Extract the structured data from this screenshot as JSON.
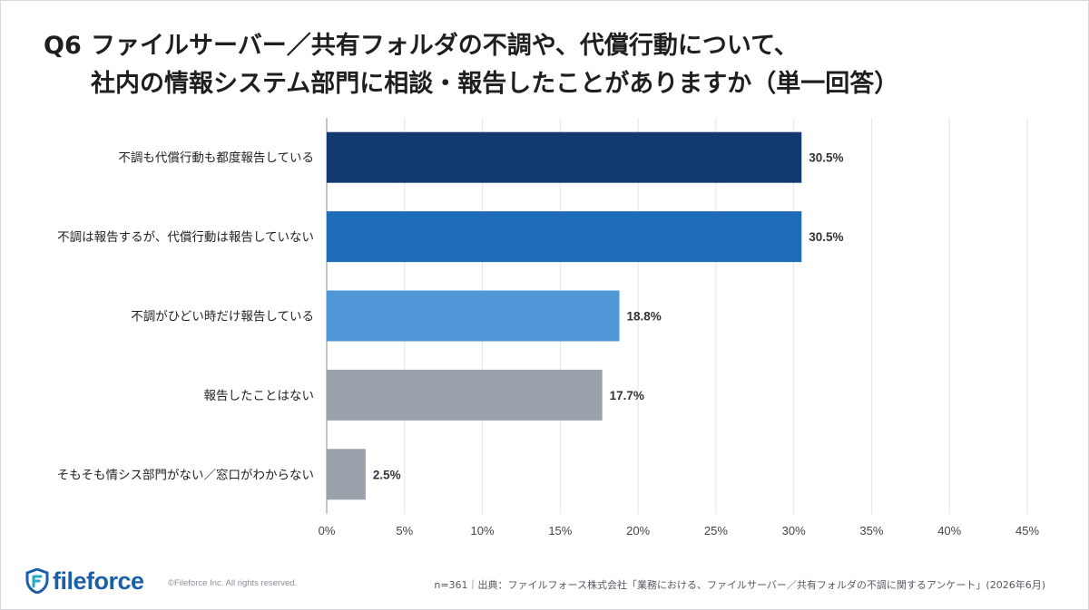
{
  "title": {
    "qnum": "Q6",
    "line1": "ファイルサーバー／共有フォルダの不調や、代償行動について、",
    "line2": "社内の情報システム部門に相談・報告したことがありますか（単一回答）"
  },
  "chart_data": {
    "type": "bar",
    "orientation": "horizontal",
    "categories": [
      "不調も代償行動も都度報告している",
      "不調は報告するが、代償行動は報告していない",
      "不調がひどい時だけ報告している",
      "報告したことはない",
      "そもそも情シス部門がない／窓口がわからない"
    ],
    "values": [
      30.5,
      30.5,
      18.8,
      17.7,
      2.5
    ],
    "value_labels": [
      "30.5%",
      "30.5%",
      "18.8%",
      "17.7%",
      "2.5%"
    ],
    "colors": [
      "#123a70",
      "#1f6db8",
      "#4f97d6",
      "#9aa1aa",
      "#9aa1aa"
    ],
    "xlim": [
      0,
      45
    ],
    "xticks": [
      0,
      5,
      10,
      15,
      20,
      25,
      30,
      35,
      40,
      45
    ],
    "xtick_labels": [
      "0%",
      "5%",
      "10%",
      "15%",
      "20%",
      "25%",
      "30%",
      "35%",
      "40%",
      "45%"
    ],
    "grid": true
  },
  "footer": {
    "logo_text": "fileforce",
    "copyright": "©Fileforce Inc. All rights reserved.",
    "source": "n=361｜出典：ファイルフォース株式会社「業務における、ファイルサーバー／共有フォルダの不調に関するアンケート」(2026年6月)"
  }
}
